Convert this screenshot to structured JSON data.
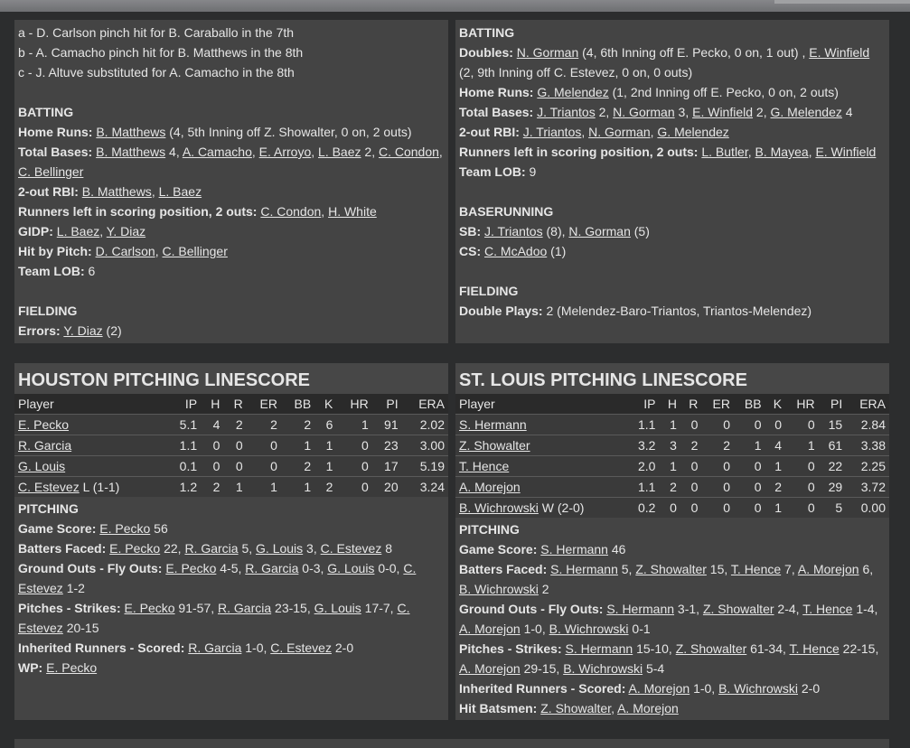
{
  "notes": [
    "a - D. Carlson pinch hit for B. Caraballo in the 7th",
    "b - A. Camacho pinch hit for B. Matthews in the 8th",
    "c - J. Altuve substituted for A. Camacho in the 8th"
  ],
  "left_top": [
    {
      "section": "BATTING"
    },
    {
      "label": "Home Runs:",
      "segs": [
        {
          "t": "B. Matthews",
          "l": true
        },
        {
          "t": " (4, 5th Inning off Z. Showalter, 0 on, 2 outs)"
        }
      ]
    },
    {
      "label": "Total Bases:",
      "segs": [
        {
          "t": "B. Matthews",
          "l": true
        },
        {
          "t": " 4, "
        },
        {
          "t": "A. Camacho",
          "l": true
        },
        {
          "t": ", "
        },
        {
          "t": "E. Arroyo",
          "l": true
        },
        {
          "t": ", "
        },
        {
          "t": "L. Baez",
          "l": true
        },
        {
          "t": " 2, "
        },
        {
          "t": "C. Condon",
          "l": true
        },
        {
          "t": ", "
        },
        {
          "t": "C. Bellinger",
          "l": true
        }
      ]
    },
    {
      "label": "2-out RBI:",
      "segs": [
        {
          "t": "B. Matthews",
          "l": true
        },
        {
          "t": ", "
        },
        {
          "t": "L. Baez",
          "l": true
        }
      ]
    },
    {
      "label": "Runners left in scoring position, 2 outs:",
      "segs": [
        {
          "t": "C. Condon",
          "l": true
        },
        {
          "t": ", "
        },
        {
          "t": "H. White",
          "l": true
        }
      ]
    },
    {
      "label": "GIDP:",
      "segs": [
        {
          "t": "L. Baez",
          "l": true
        },
        {
          "t": ", "
        },
        {
          "t": "Y. Diaz",
          "l": true
        }
      ]
    },
    {
      "label": "Hit by Pitch:",
      "segs": [
        {
          "t": "D. Carlson",
          "l": true
        },
        {
          "t": ", "
        },
        {
          "t": "C. Bellinger",
          "l": true
        }
      ]
    },
    {
      "label": "Team LOB:",
      "segs": [
        {
          "t": "6"
        }
      ]
    },
    {
      "gap": true
    },
    {
      "section": "FIELDING"
    },
    {
      "label": "Errors:",
      "segs": [
        {
          "t": "Y. Diaz",
          "l": true
        },
        {
          "t": " (2)"
        }
      ]
    }
  ],
  "right_top": [
    {
      "section": "BATTING"
    },
    {
      "label": "Doubles:",
      "segs": [
        {
          "t": "N. Gorman",
          "l": true
        },
        {
          "t": " (4, 6th Inning off E. Pecko, 0 on, 1 out) , "
        },
        {
          "t": "E. Winfield",
          "l": true
        },
        {
          "t": " (2, 9th Inning off C. Estevez, 0 on, 0 outs)"
        }
      ]
    },
    {
      "label": "Home Runs:",
      "segs": [
        {
          "t": "G. Melendez",
          "l": true
        },
        {
          "t": " (1, 2nd Inning off E. Pecko, 0 on, 2 outs)"
        }
      ]
    },
    {
      "label": "Total Bases:",
      "segs": [
        {
          "t": "J. Triantos",
          "l": true
        },
        {
          "t": " 2, "
        },
        {
          "t": "N. Gorman",
          "l": true
        },
        {
          "t": " 3, "
        },
        {
          "t": "E. Winfield",
          "l": true
        },
        {
          "t": " 2, "
        },
        {
          "t": "G. Melendez",
          "l": true
        },
        {
          "t": " 4"
        }
      ]
    },
    {
      "label": "2-out RBI:",
      "segs": [
        {
          "t": "J. Triantos",
          "l": true
        },
        {
          "t": ", "
        },
        {
          "t": "N. Gorman",
          "l": true
        },
        {
          "t": ", "
        },
        {
          "t": "G. Melendez",
          "l": true
        }
      ]
    },
    {
      "label": "Runners left in scoring position, 2 outs:",
      "segs": [
        {
          "t": "L. Butler",
          "l": true
        },
        {
          "t": ", "
        },
        {
          "t": "B. Mayea",
          "l": true
        },
        {
          "t": ", "
        },
        {
          "t": "E. Winfield",
          "l": true
        }
      ]
    },
    {
      "label": "Team LOB:",
      "segs": [
        {
          "t": "9"
        }
      ]
    },
    {
      "gap": true
    },
    {
      "section": "BASERUNNING"
    },
    {
      "label": "SB:",
      "segs": [
        {
          "t": "J. Triantos",
          "l": true
        },
        {
          "t": " (8), "
        },
        {
          "t": "N. Gorman",
          "l": true
        },
        {
          "t": " (5)"
        }
      ]
    },
    {
      "label": "CS:",
      "segs": [
        {
          "t": "C. McAdoo",
          "l": true
        },
        {
          "t": " (1)"
        }
      ]
    },
    {
      "gap": true
    },
    {
      "section": "FIELDING"
    },
    {
      "label": "Double Plays:",
      "segs": [
        {
          "t": "2 (Melendez-Baro-Triantos, Triantos-Melendez)"
        }
      ]
    }
  ],
  "houston": {
    "title": "HOUSTON PITCHING LINESCORE",
    "headers": [
      "Player",
      "IP",
      "H",
      "R",
      "ER",
      "BB",
      "K",
      "HR",
      "PI",
      "ERA"
    ],
    "rows": [
      {
        "name": "E. Pecko",
        "note": "",
        "stats": [
          "5.1",
          "4",
          "2",
          "2",
          "2",
          "6",
          "1",
          "91",
          "2.02"
        ]
      },
      {
        "name": "R. Garcia",
        "note": "",
        "stats": [
          "1.1",
          "0",
          "0",
          "0",
          "1",
          "1",
          "0",
          "23",
          "3.00"
        ]
      },
      {
        "name": "G. Louis",
        "note": "",
        "stats": [
          "0.1",
          "0",
          "0",
          "0",
          "2",
          "1",
          "0",
          "17",
          "5.19"
        ]
      },
      {
        "name": "C. Estevez",
        "note": " L (1-1)",
        "stats": [
          "1.2",
          "2",
          "1",
          "1",
          "1",
          "2",
          "0",
          "20",
          "3.24"
        ]
      }
    ],
    "lines": [
      {
        "section": "PITCHING"
      },
      {
        "label": "Game Score:",
        "segs": [
          {
            "t": "E. Pecko",
            "l": true
          },
          {
            "t": " 56"
          }
        ]
      },
      {
        "label": "Batters Faced:",
        "segs": [
          {
            "t": "E. Pecko",
            "l": true
          },
          {
            "t": " 22, "
          },
          {
            "t": "R. Garcia",
            "l": true
          },
          {
            "t": " 5, "
          },
          {
            "t": "G. Louis",
            "l": true
          },
          {
            "t": " 3, "
          },
          {
            "t": "C. Estevez",
            "l": true
          },
          {
            "t": " 8"
          }
        ]
      },
      {
        "label": "Ground Outs - Fly Outs:",
        "segs": [
          {
            "t": "E. Pecko",
            "l": true
          },
          {
            "t": " 4-5, "
          },
          {
            "t": "R. Garcia",
            "l": true
          },
          {
            "t": " 0-3, "
          },
          {
            "t": "G. Louis",
            "l": true
          },
          {
            "t": " 0-0, "
          },
          {
            "t": "C. Estevez",
            "l": true
          },
          {
            "t": " 1-2"
          }
        ]
      },
      {
        "label": "Pitches - Strikes:",
        "segs": [
          {
            "t": "E. Pecko",
            "l": true
          },
          {
            "t": " 91-57, "
          },
          {
            "t": "R. Garcia",
            "l": true
          },
          {
            "t": " 23-15, "
          },
          {
            "t": "G. Louis",
            "l": true
          },
          {
            "t": " 17-7, "
          },
          {
            "t": "C. Estevez",
            "l": true
          },
          {
            "t": " 20-15"
          }
        ]
      },
      {
        "label": "Inherited Runners - Scored:",
        "segs": [
          {
            "t": "R. Garcia",
            "l": true
          },
          {
            "t": " 1-0, "
          },
          {
            "t": "C. Estevez",
            "l": true
          },
          {
            "t": " 2-0"
          }
        ]
      },
      {
        "label": "WP:",
        "segs": [
          {
            "t": "E. Pecko",
            "l": true
          }
        ]
      }
    ]
  },
  "stlouis": {
    "title": "ST. LOUIS PITCHING LINESCORE",
    "headers": [
      "Player",
      "IP",
      "H",
      "R",
      "ER",
      "BB",
      "K",
      "HR",
      "PI",
      "ERA"
    ],
    "rows": [
      {
        "name": "S. Hermann",
        "note": "",
        "stats": [
          "1.1",
          "1",
          "0",
          "0",
          "0",
          "0",
          "0",
          "15",
          "2.84"
        ]
      },
      {
        "name": "Z. Showalter",
        "note": "",
        "stats": [
          "3.2",
          "3",
          "2",
          "2",
          "1",
          "4",
          "1",
          "61",
          "3.38"
        ]
      },
      {
        "name": "T. Hence",
        "note": "",
        "stats": [
          "2.0",
          "1",
          "0",
          "0",
          "0",
          "1",
          "0",
          "22",
          "2.25"
        ]
      },
      {
        "name": "A. Morejon",
        "note": "",
        "stats": [
          "1.1",
          "2",
          "0",
          "0",
          "0",
          "2",
          "0",
          "29",
          "3.72"
        ]
      },
      {
        "name": "B. Wichrowski",
        "note": " W (2-0)",
        "stats": [
          "0.2",
          "0",
          "0",
          "0",
          "0",
          "1",
          "0",
          "5",
          "0.00"
        ]
      }
    ],
    "lines": [
      {
        "section": "PITCHING"
      },
      {
        "label": "Game Score:",
        "segs": [
          {
            "t": "S. Hermann",
            "l": true
          },
          {
            "t": " 46"
          }
        ]
      },
      {
        "label": "Batters Faced:",
        "segs": [
          {
            "t": "S. Hermann",
            "l": true
          },
          {
            "t": " 5, "
          },
          {
            "t": "Z. Showalter",
            "l": true
          },
          {
            "t": " 15, "
          },
          {
            "t": "T. Hence",
            "l": true
          },
          {
            "t": " 7, "
          },
          {
            "t": "A. Morejon",
            "l": true
          },
          {
            "t": " 6, "
          },
          {
            "t": "B. Wichrowski",
            "l": true
          },
          {
            "t": " 2"
          }
        ]
      },
      {
        "label": "Ground Outs - Fly Outs:",
        "segs": [
          {
            "t": "S. Hermann",
            "l": true
          },
          {
            "t": " 3-1, "
          },
          {
            "t": "Z. Showalter",
            "l": true
          },
          {
            "t": " 2-4, "
          },
          {
            "t": "T. Hence",
            "l": true
          },
          {
            "t": " 1-4, "
          },
          {
            "t": "A. Morejon",
            "l": true
          },
          {
            "t": " 1-0, "
          },
          {
            "t": "B. Wichrowski",
            "l": true
          },
          {
            "t": " 0-1"
          }
        ]
      },
      {
        "label": "Pitches - Strikes:",
        "segs": [
          {
            "t": "S. Hermann",
            "l": true
          },
          {
            "t": " 15-10, "
          },
          {
            "t": "Z. Showalter",
            "l": true
          },
          {
            "t": " 61-34, "
          },
          {
            "t": "T. Hence",
            "l": true
          },
          {
            "t": " 22-15, "
          },
          {
            "t": "A. Morejon",
            "l": true
          },
          {
            "t": " 29-15, "
          },
          {
            "t": "B. Wichrowski",
            "l": true
          },
          {
            "t": " 5-4"
          }
        ]
      },
      {
        "label": "Inherited Runners - Scored:",
        "segs": [
          {
            "t": "A. Morejon",
            "l": true
          },
          {
            "t": " 1-0, "
          },
          {
            "t": "B. Wichrowski",
            "l": true
          },
          {
            "t": " 2-0"
          }
        ]
      },
      {
        "label": "Hit Batsmen:",
        "segs": [
          {
            "t": "Z. Showalter",
            "l": true
          },
          {
            "t": ", "
          },
          {
            "t": "A. Morejon",
            "l": true
          }
        ]
      }
    ]
  }
}
